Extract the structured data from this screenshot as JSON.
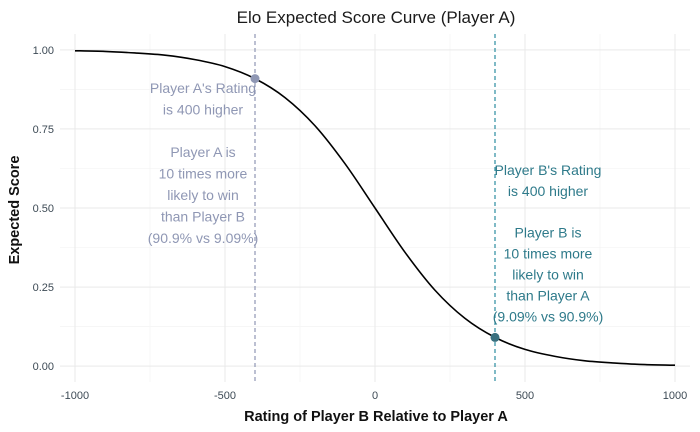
{
  "chart_data": {
    "type": "line",
    "title": "Elo Expected Score Curve (Player A)",
    "xlabel": "Rating of Player B Relative to Player A",
    "ylabel": "Expected Score",
    "xlim": [
      -1050,
      1050
    ],
    "ylim": [
      -0.05,
      1.05
    ],
    "x_ticks": [
      -1000,
      -500,
      0,
      500,
      1000
    ],
    "x_tick_labels": [
      "-1000",
      "-500",
      "0",
      "500",
      "1000"
    ],
    "y_ticks": [
      0,
      0.25,
      0.5,
      0.75,
      1
    ],
    "y_tick_labels": [
      "0.00",
      "0.25",
      "0.50",
      "0.75",
      "1.00"
    ],
    "grid": true,
    "line_color": "#000000",
    "series": [
      {
        "x": [
          -1000,
          -900,
          -800,
          -700,
          -600,
          -500,
          -400,
          -300,
          -200,
          -100,
          0,
          100,
          200,
          300,
          400,
          500,
          600,
          700,
          800,
          900,
          1000
        ],
        "y": [
          0.997,
          0.995,
          0.99,
          0.983,
          0.969,
          0.947,
          0.909,
          0.849,
          0.76,
          0.64,
          0.5,
          0.36,
          0.24,
          0.151,
          0.091,
          0.053,
          0.031,
          0.017,
          0.01,
          0.005,
          0.003
        ]
      }
    ],
    "markers": [
      {
        "x": -400,
        "y": 0.909,
        "color": "#8f97b4"
      },
      {
        "x": 400,
        "y": 0.091,
        "color": "#39707f"
      }
    ],
    "reference_lines": [
      {
        "x": -400,
        "color": "#8f97b4"
      },
      {
        "x": 400,
        "color": "#2b8da0"
      }
    ],
    "annotations": [
      {
        "color": "#8f97b4",
        "lines": [
          "Player A's Rating",
          "is 400 higher",
          "",
          "Player A is",
          "10 times more",
          "likely to win",
          "than Player B",
          "(90.9% vs 9.09%)"
        ]
      },
      {
        "color": "#2e7a8a",
        "lines": [
          "Player B's Rating",
          "is 400 higher",
          "",
          "Player B is",
          "10 times more",
          "likely to win",
          "than Player A",
          "(9.09% vs 90.9%)"
        ]
      }
    ]
  }
}
